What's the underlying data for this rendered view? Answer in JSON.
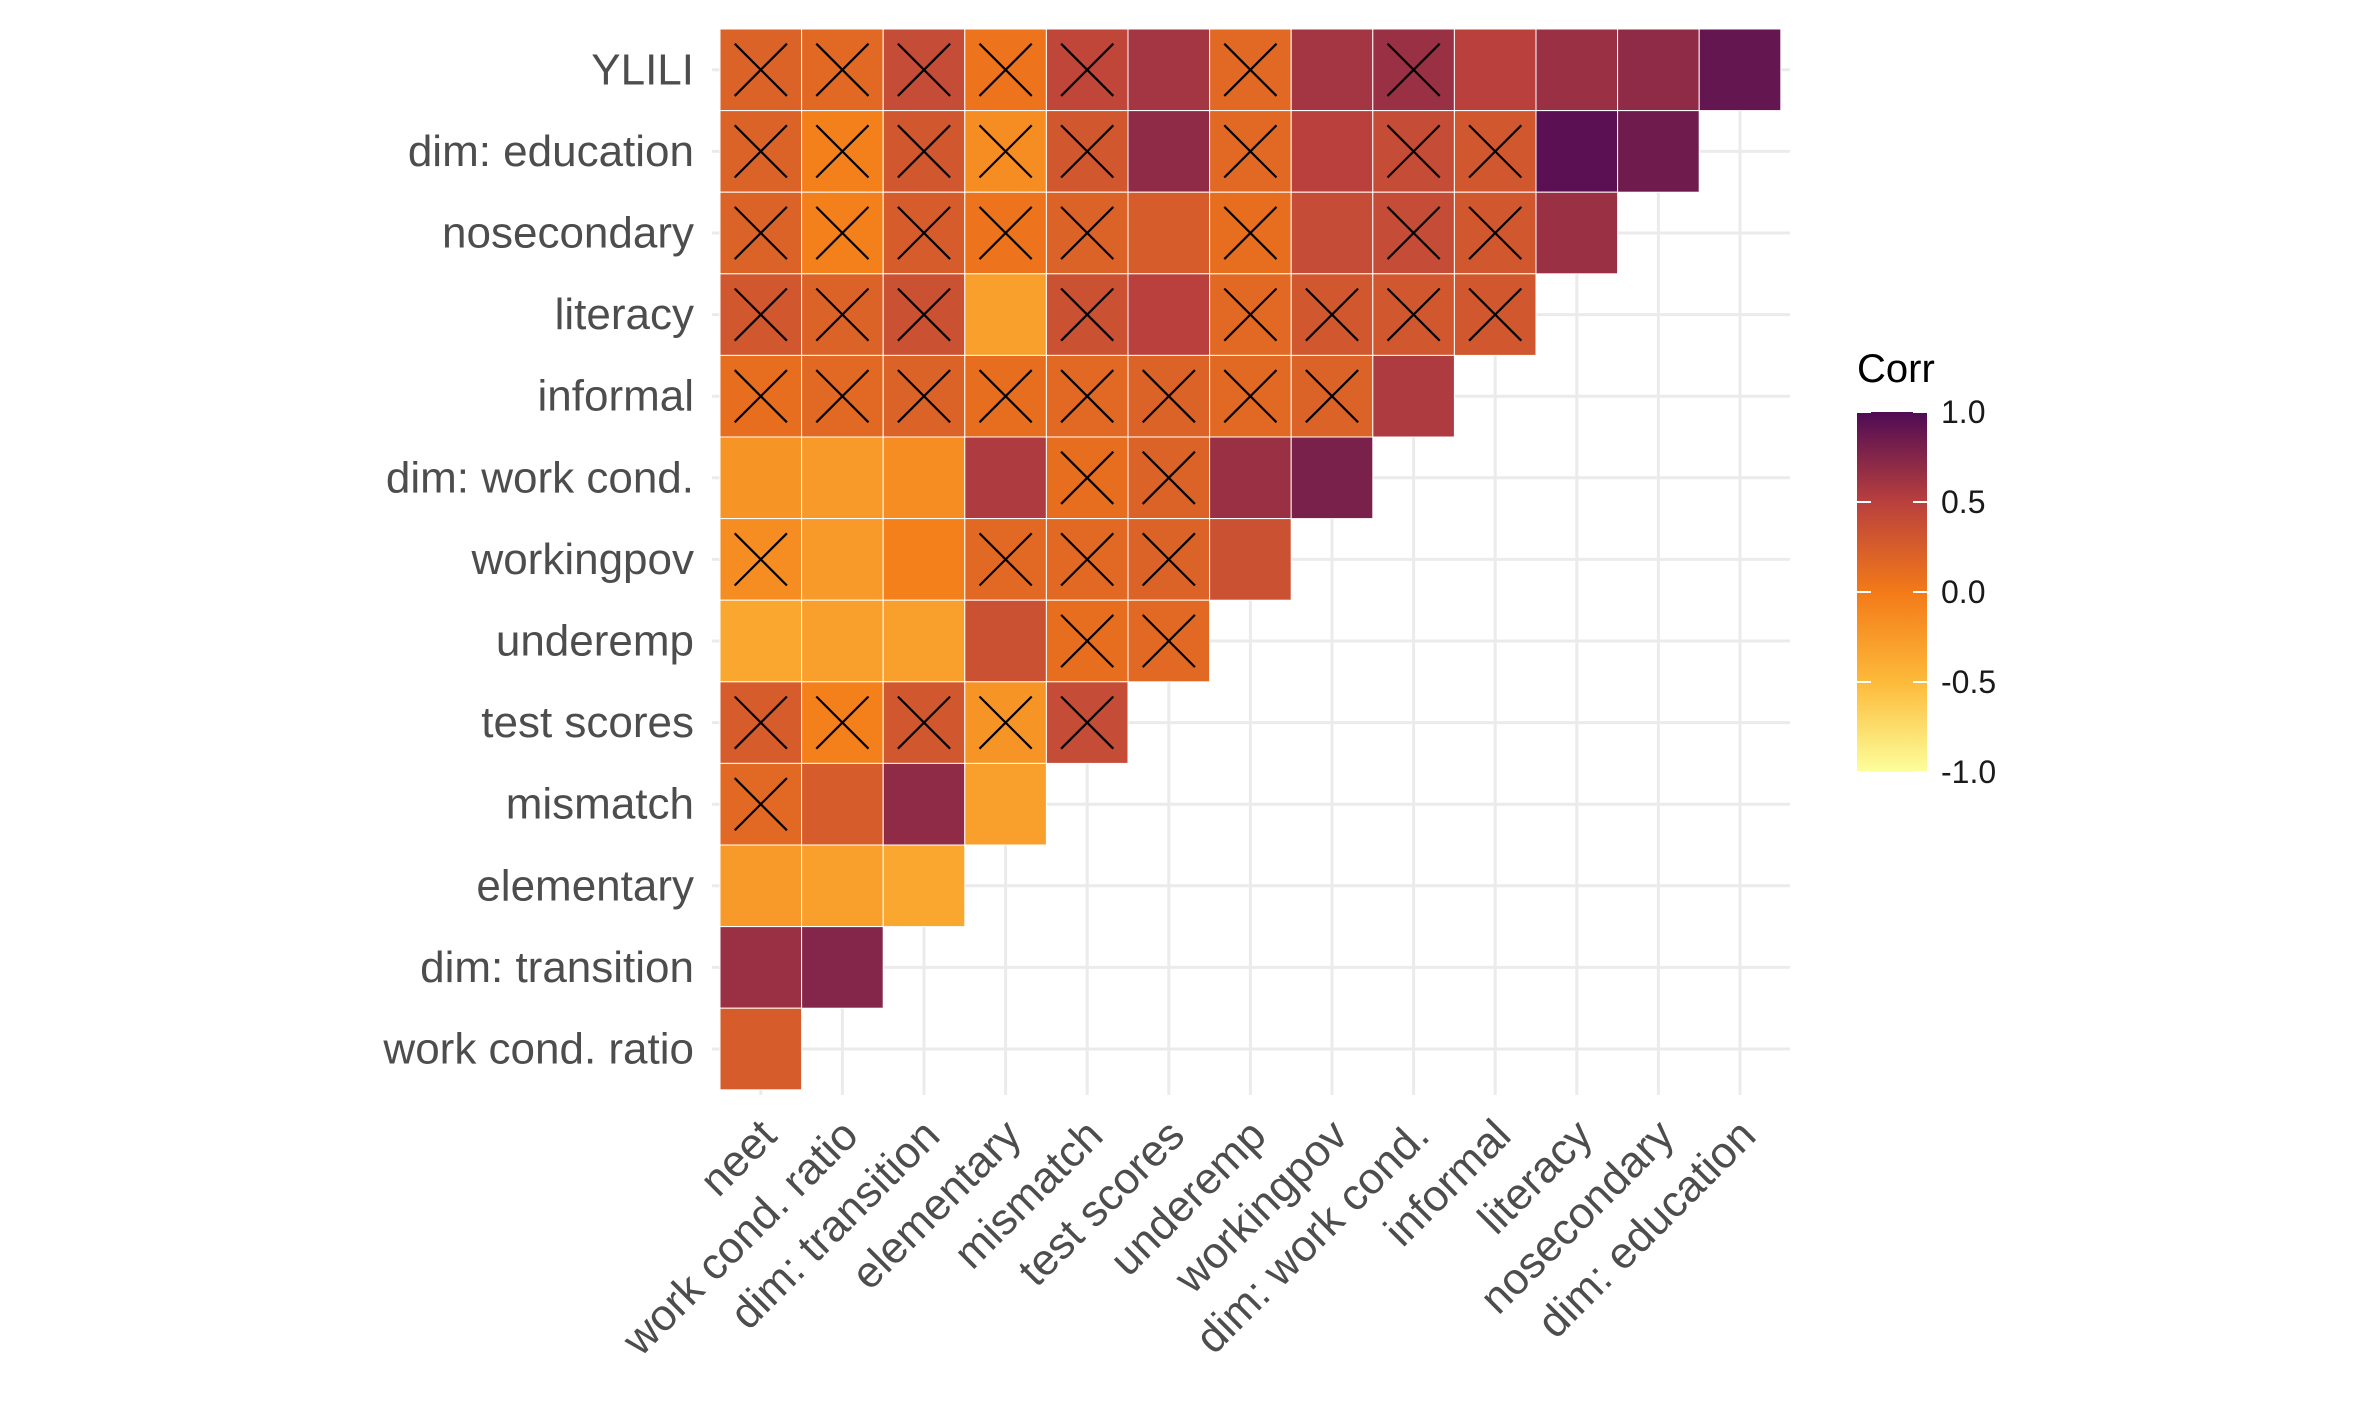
{
  "chart_data": {
    "type": "heatmap",
    "title": "",
    "xlabel": "",
    "ylabel": "",
    "x_categories": [
      "neet",
      "work cond. ratio",
      "dim: transition",
      "elementary",
      "mismatch",
      "test scores",
      "underemp",
      "workingpov",
      "dim: work cond.",
      "informal",
      "literacy",
      "nosecondary",
      "dim: education"
    ],
    "y_categories": [
      "YLILI",
      "dim: education",
      "nosecondary",
      "literacy",
      "informal",
      "dim: work cond.",
      "workingpov",
      "underemp",
      "test scores",
      "mismatch",
      "elementary",
      "dim: transition",
      "work cond. ratio"
    ],
    "cells": [
      {
        "y": "YLILI",
        "x": "neet",
        "value": 0.2,
        "insignificant": true
      },
      {
        "y": "YLILI",
        "x": "work cond. ratio",
        "value": 0.15,
        "insignificant": true
      },
      {
        "y": "YLILI",
        "x": "dim: transition",
        "value": 0.4,
        "insignificant": true
      },
      {
        "y": "YLILI",
        "x": "elementary",
        "value": 0.05,
        "insignificant": true
      },
      {
        "y": "YLILI",
        "x": "mismatch",
        "value": 0.45,
        "insignificant": true
      },
      {
        "y": "YLILI",
        "x": "test scores",
        "value": 0.6,
        "insignificant": false
      },
      {
        "y": "YLILI",
        "x": "underemp",
        "value": 0.15,
        "insignificant": true
      },
      {
        "y": "YLILI",
        "x": "workingpov",
        "value": 0.6,
        "insignificant": false
      },
      {
        "y": "YLILI",
        "x": "dim: work cond.",
        "value": 0.65,
        "insignificant": true
      },
      {
        "y": "YLILI",
        "x": "informal",
        "value": 0.5,
        "insignificant": false
      },
      {
        "y": "YLILI",
        "x": "literacy",
        "value": 0.65,
        "insignificant": false
      },
      {
        "y": "YLILI",
        "x": "nosecondary",
        "value": 0.7,
        "insignificant": false
      },
      {
        "y": "YLILI",
        "x": "dim: education",
        "value": 0.9,
        "insignificant": false
      },
      {
        "y": "dim: education",
        "x": "neet",
        "value": 0.2,
        "insignificant": true
      },
      {
        "y": "dim: education",
        "x": "work cond. ratio",
        "value": -0.05,
        "insignificant": true
      },
      {
        "y": "dim: education",
        "x": "dim: transition",
        "value": 0.3,
        "insignificant": true
      },
      {
        "y": "dim: education",
        "x": "elementary",
        "value": -0.15,
        "insignificant": true
      },
      {
        "y": "dim: education",
        "x": "mismatch",
        "value": 0.3,
        "insignificant": true
      },
      {
        "y": "dim: education",
        "x": "test scores",
        "value": 0.7,
        "insignificant": false
      },
      {
        "y": "dim: education",
        "x": "underemp",
        "value": 0.15,
        "insignificant": true
      },
      {
        "y": "dim: education",
        "x": "workingpov",
        "value": 0.5,
        "insignificant": false
      },
      {
        "y": "dim: education",
        "x": "dim: work cond.",
        "value": 0.4,
        "insignificant": true
      },
      {
        "y": "dim: education",
        "x": "informal",
        "value": 0.3,
        "insignificant": true
      },
      {
        "y": "dim: education",
        "x": "literacy",
        "value": 0.95,
        "insignificant": false
      },
      {
        "y": "dim: education",
        "x": "nosecondary",
        "value": 0.85,
        "insignificant": false
      },
      {
        "y": "nosecondary",
        "x": "neet",
        "value": 0.2,
        "insignificant": true
      },
      {
        "y": "nosecondary",
        "x": "work cond. ratio",
        "value": -0.05,
        "insignificant": true
      },
      {
        "y": "nosecondary",
        "x": "dim: transition",
        "value": 0.25,
        "insignificant": true
      },
      {
        "y": "nosecondary",
        "x": "elementary",
        "value": 0.05,
        "insignificant": true
      },
      {
        "y": "nosecondary",
        "x": "mismatch",
        "value": 0.2,
        "insignificant": true
      },
      {
        "y": "nosecondary",
        "x": "test scores",
        "value": 0.25,
        "insignificant": false
      },
      {
        "y": "nosecondary",
        "x": "underemp",
        "value": 0.1,
        "insignificant": true
      },
      {
        "y": "nosecondary",
        "x": "workingpov",
        "value": 0.4,
        "insignificant": false
      },
      {
        "y": "nosecondary",
        "x": "dim: work cond.",
        "value": 0.4,
        "insignificant": true
      },
      {
        "y": "nosecondary",
        "x": "informal",
        "value": 0.3,
        "insignificant": true
      },
      {
        "y": "nosecondary",
        "x": "literacy",
        "value": 0.65,
        "insignificant": false
      },
      {
        "y": "literacy",
        "x": "neet",
        "value": 0.3,
        "insignificant": true
      },
      {
        "y": "literacy",
        "x": "work cond. ratio",
        "value": 0.2,
        "insignificant": true
      },
      {
        "y": "literacy",
        "x": "dim: transition",
        "value": 0.35,
        "insignificant": true
      },
      {
        "y": "literacy",
        "x": "elementary",
        "value": -0.3,
        "insignificant": false
      },
      {
        "y": "literacy",
        "x": "mismatch",
        "value": 0.35,
        "insignificant": true
      },
      {
        "y": "literacy",
        "x": "test scores",
        "value": 0.5,
        "insignificant": false
      },
      {
        "y": "literacy",
        "x": "underemp",
        "value": 0.15,
        "insignificant": true
      },
      {
        "y": "literacy",
        "x": "workingpov",
        "value": 0.3,
        "insignificant": true
      },
      {
        "y": "literacy",
        "x": "dim: work cond.",
        "value": 0.3,
        "insignificant": true
      },
      {
        "y": "literacy",
        "x": "informal",
        "value": 0.3,
        "insignificant": true
      },
      {
        "y": "informal",
        "x": "neet",
        "value": 0.1,
        "insignificant": true
      },
      {
        "y": "informal",
        "x": "work cond. ratio",
        "value": 0.15,
        "insignificant": true
      },
      {
        "y": "informal",
        "x": "dim: transition",
        "value": 0.2,
        "insignificant": true
      },
      {
        "y": "informal",
        "x": "elementary",
        "value": 0.1,
        "insignificant": true
      },
      {
        "y": "informal",
        "x": "mismatch",
        "value": 0.15,
        "insignificant": true
      },
      {
        "y": "informal",
        "x": "test scores",
        "value": 0.2,
        "insignificant": true
      },
      {
        "y": "informal",
        "x": "underemp",
        "value": 0.15,
        "insignificant": true
      },
      {
        "y": "informal",
        "x": "workingpov",
        "value": 0.2,
        "insignificant": true
      },
      {
        "y": "informal",
        "x": "dim: work cond.",
        "value": 0.55,
        "insignificant": false
      },
      {
        "y": "dim: work cond.",
        "x": "neet",
        "value": -0.2,
        "insignificant": false
      },
      {
        "y": "dim: work cond.",
        "x": "work cond. ratio",
        "value": -0.25,
        "insignificant": false
      },
      {
        "y": "dim: work cond.",
        "x": "dim: transition",
        "value": -0.15,
        "insignificant": false
      },
      {
        "y": "dim: work cond.",
        "x": "elementary",
        "value": 0.55,
        "insignificant": false
      },
      {
        "y": "dim: work cond.",
        "x": "mismatch",
        "value": 0.1,
        "insignificant": true
      },
      {
        "y": "dim: work cond.",
        "x": "test scores",
        "value": 0.2,
        "insignificant": true
      },
      {
        "y": "dim: work cond.",
        "x": "underemp",
        "value": 0.65,
        "insignificant": false
      },
      {
        "y": "dim: work cond.",
        "x": "workingpov",
        "value": 0.8,
        "insignificant": false
      },
      {
        "y": "workingpov",
        "x": "neet",
        "value": -0.15,
        "insignificant": true
      },
      {
        "y": "workingpov",
        "x": "work cond. ratio",
        "value": -0.25,
        "insignificant": false
      },
      {
        "y": "workingpov",
        "x": "dim: transition",
        "value": -0.05,
        "insignificant": false
      },
      {
        "y": "workingpov",
        "x": "elementary",
        "value": 0.15,
        "insignificant": true
      },
      {
        "y": "workingpov",
        "x": "mismatch",
        "value": 0.15,
        "insignificant": true
      },
      {
        "y": "workingpov",
        "x": "test scores",
        "value": 0.2,
        "insignificant": true
      },
      {
        "y": "workingpov",
        "x": "underemp",
        "value": 0.35,
        "insignificant": false
      },
      {
        "y": "underemp",
        "x": "neet",
        "value": -0.35,
        "insignificant": false
      },
      {
        "y": "underemp",
        "x": "work cond. ratio",
        "value": -0.3,
        "insignificant": false
      },
      {
        "y": "underemp",
        "x": "dim: transition",
        "value": -0.3,
        "insignificant": false
      },
      {
        "y": "underemp",
        "x": "elementary",
        "value": 0.35,
        "insignificant": false
      },
      {
        "y": "underemp",
        "x": "mismatch",
        "value": 0.1,
        "insignificant": true
      },
      {
        "y": "underemp",
        "x": "test scores",
        "value": 0.15,
        "insignificant": true
      },
      {
        "y": "test scores",
        "x": "neet",
        "value": 0.25,
        "insignificant": true
      },
      {
        "y": "test scores",
        "x": "work cond. ratio",
        "value": -0.05,
        "insignificant": true
      },
      {
        "y": "test scores",
        "x": "dim: transition",
        "value": 0.3,
        "insignificant": true
      },
      {
        "y": "test scores",
        "x": "elementary",
        "value": -0.2,
        "insignificant": true
      },
      {
        "y": "test scores",
        "x": "mismatch",
        "value": 0.4,
        "insignificant": true
      },
      {
        "y": "mismatch",
        "x": "neet",
        "value": 0.15,
        "insignificant": true
      },
      {
        "y": "mismatch",
        "x": "work cond. ratio",
        "value": 0.25,
        "insignificant": false
      },
      {
        "y": "mismatch",
        "x": "dim: transition",
        "value": 0.7,
        "insignificant": false
      },
      {
        "y": "mismatch",
        "x": "elementary",
        "value": -0.3,
        "insignificant": false
      },
      {
        "y": "elementary",
        "x": "neet",
        "value": -0.25,
        "insignificant": false
      },
      {
        "y": "elementary",
        "x": "work cond. ratio",
        "value": -0.3,
        "insignificant": false
      },
      {
        "y": "elementary",
        "x": "dim: transition",
        "value": -0.35,
        "insignificant": false
      },
      {
        "y": "dim: transition",
        "x": "neet",
        "value": 0.65,
        "insignificant": false
      },
      {
        "y": "dim: transition",
        "x": "work cond. ratio",
        "value": 0.75,
        "insignificant": false
      },
      {
        "y": "work cond. ratio",
        "x": "neet",
        "value": 0.25,
        "insignificant": false
      }
    ],
    "legend": {
      "title": "Corr",
      "placement": "right",
      "ticks": [
        1.0,
        0.5,
        0.0,
        -0.5,
        -1.0
      ],
      "tick_labels": [
        "1.0",
        "0.5",
        "0.0",
        "-0.5",
        "-1.0"
      ],
      "range": [
        -1,
        1
      ]
    },
    "color_scale": {
      "name": "inferno-truncated",
      "stops": [
        {
          "value": -1.0,
          "color": "#fcff9c"
        },
        {
          "value": -0.5,
          "color": "#fdba3a"
        },
        {
          "value": 0.0,
          "color": "#f37a18"
        },
        {
          "value": 0.5,
          "color": "#b9403d"
        },
        {
          "value": 1.0,
          "color": "#4f0b55"
        }
      ]
    },
    "grid": true,
    "colors": {
      "gridline": "#ebebeb",
      "tile_border": "#ffffff",
      "cross": "#000000",
      "tick_text": "#4d4d4d"
    }
  }
}
